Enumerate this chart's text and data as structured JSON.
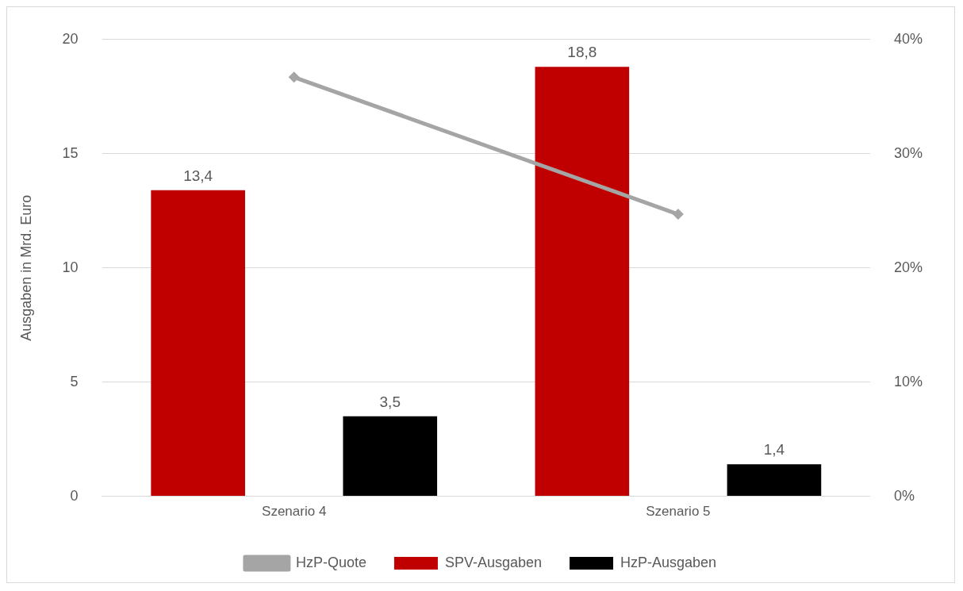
{
  "chart_data": {
    "type": "bar",
    "ylabel": "Ausgaben in Mrd. Euro",
    "categories": [
      "Szenario 4",
      "Szenario 5"
    ],
    "series": [
      {
        "name": "SPV-Ausgaben",
        "color": "#c00000",
        "values": [
          13.4,
          18.8
        ],
        "value_labels": [
          "13,4",
          "18,8"
        ]
      },
      {
        "name": "HzP-Ausgaben",
        "color": "#000000",
        "values": [
          3.5,
          1.4
        ],
        "value_labels": [
          "3,5",
          "1,4"
        ]
      },
      {
        "name": "HzP-Quote",
        "type": "line",
        "axis": "y2",
        "color": "#a5a5a5",
        "values": [
          36.7,
          24.7
        ],
        "marker": "diamond",
        "line_style": "solid"
      }
    ],
    "ylim": [
      0,
      20
    ],
    "yticks": [
      0,
      5,
      10,
      15,
      20
    ],
    "y2lim": [
      0,
      40
    ],
    "y2ticks": [
      {
        "value": 0,
        "label": "0%"
      },
      {
        "value": 10,
        "label": "10%"
      },
      {
        "value": 20,
        "label": "20%"
      },
      {
        "value": 30,
        "label": "30%"
      },
      {
        "value": 40,
        "label": "40%"
      }
    ],
    "grid": "y",
    "legend": "bottom"
  }
}
